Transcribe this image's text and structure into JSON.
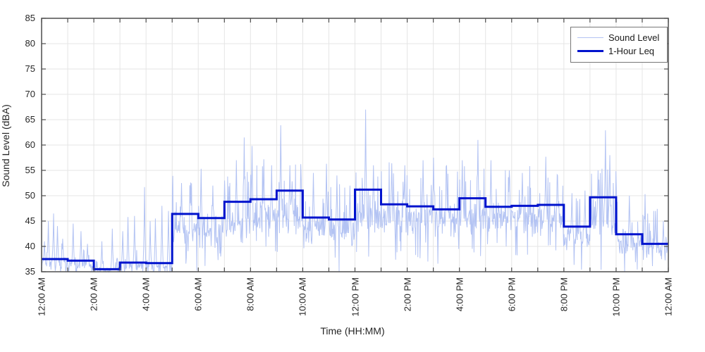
{
  "chart_data": {
    "type": "line",
    "title": "",
    "xlabel": "Time (HH:MM)",
    "ylabel": "Sound Level (dBA)",
    "ylim": [
      35,
      85
    ],
    "ytick_values": [
      35,
      40,
      45,
      50,
      55,
      60,
      65,
      70,
      75,
      80,
      85
    ],
    "xlim_hours": [
      0,
      24
    ],
    "xtick_hour_interval": 1,
    "xtick_label_interval": 2,
    "xtick_labels": [
      "12:00 AM",
      "2:00 AM",
      "4:00 AM",
      "6:00 AM",
      "8:00 AM",
      "10:00 AM",
      "12:00 PM",
      "2:00 PM",
      "4:00 PM",
      "6:00 PM",
      "8:00 PM",
      "10:00 PM",
      "12:00 AM"
    ],
    "grid": true,
    "colors": {
      "sound_level": "#b3c3f3",
      "leq": "#0013cd",
      "grid": "#e5e5e5",
      "axis": "#4d4d4d",
      "text": "#262626"
    },
    "legend": {
      "position": "top-right",
      "entries": [
        {
          "label": "Sound Level",
          "series": "sound_level",
          "line_weight": "thin"
        },
        {
          "label": "1-Hour Leq",
          "series": "leq",
          "line_weight": "thick"
        }
      ]
    },
    "series": [
      {
        "name": "Sound Level",
        "kind": "minute-samples-synthesized",
        "samples_per_hour": 60,
        "seed": 1337,
        "hour_envelope": {
          "base": [
            36.8,
            36.5,
            35.3,
            36.0,
            36.0,
            43.5,
            43.0,
            45.0,
            45.5,
            46.0,
            43.5,
            43.0,
            46.0,
            45.8,
            45.5,
            45.0,
            46.0,
            45.5,
            45.8,
            45.8,
            42.0,
            45.0,
            41.0,
            39.3
          ],
          "spread": [
            1.8,
            1.5,
            0.8,
            1.2,
            1.5,
            3.6,
            3.6,
            4.0,
            4.0,
            4.2,
            3.4,
            3.4,
            3.6,
            3.6,
            3.6,
            3.8,
            3.8,
            3.6,
            3.4,
            3.6,
            2.8,
            4.0,
            3.2,
            3.0
          ]
        },
        "notable_spikes_hour_dba": [
          [
            0.1,
            41.0
          ],
          [
            0.25,
            45.0
          ],
          [
            0.45,
            46.5
          ],
          [
            0.6,
            44.0
          ],
          [
            0.8,
            41.5
          ],
          [
            1.2,
            44.5
          ],
          [
            1.5,
            43.0
          ],
          [
            1.75,
            40.5
          ],
          [
            2.3,
            41.0
          ],
          [
            2.7,
            43.5
          ],
          [
            3.1,
            43.0
          ],
          [
            3.3,
            45.8
          ],
          [
            3.55,
            46.0
          ],
          [
            3.93,
            51.7
          ],
          [
            4.15,
            45.0
          ],
          [
            4.35,
            45.5
          ],
          [
            4.6,
            48.0
          ],
          [
            4.85,
            47.0
          ],
          [
            5.35,
            52.5
          ],
          [
            5.7,
            52.6
          ],
          [
            6.1,
            55.3
          ],
          [
            6.55,
            52.0
          ],
          [
            7.0,
            53.0
          ],
          [
            7.45,
            57.0
          ],
          [
            7.75,
            61.5
          ],
          [
            8.05,
            59.8
          ],
          [
            8.5,
            57.2
          ],
          [
            8.8,
            56.0
          ],
          [
            9.15,
            63.9
          ],
          [
            9.5,
            56.0
          ],
          [
            10.4,
            54.5
          ],
          [
            10.9,
            56.3
          ],
          [
            11.3,
            54.0
          ],
          [
            11.8,
            52.0
          ],
          [
            12.4,
            67.0
          ],
          [
            12.7,
            56.0
          ],
          [
            13.4,
            56.4
          ],
          [
            13.9,
            56.0
          ],
          [
            14.6,
            57.0
          ],
          [
            15.0,
            57.5
          ],
          [
            15.5,
            56.0
          ],
          [
            16.1,
            57.0
          ],
          [
            16.7,
            61.0
          ],
          [
            17.2,
            57.0
          ],
          [
            17.9,
            55.0
          ],
          [
            18.4,
            54.5
          ],
          [
            19.3,
            57.7
          ],
          [
            19.75,
            54.0
          ],
          [
            20.3,
            50.5
          ],
          [
            20.8,
            51.0
          ],
          [
            21.3,
            55.0
          ],
          [
            21.58,
            62.9
          ],
          [
            21.75,
            58.0
          ],
          [
            22.0,
            51.8
          ],
          [
            22.5,
            50.0
          ],
          [
            23.1,
            50.3
          ],
          [
            23.5,
            47.0
          ],
          [
            23.8,
            45.0
          ]
        ]
      },
      {
        "name": "1-Hour Leq",
        "kind": "hourly-step",
        "values": [
          37.5,
          37.2,
          35.5,
          36.8,
          36.7,
          46.4,
          45.6,
          48.8,
          49.3,
          51.0,
          45.7,
          45.3,
          51.2,
          48.3,
          47.9,
          47.3,
          49.5,
          47.8,
          48.0,
          48.2,
          43.9,
          49.7,
          42.4,
          40.5
        ]
      }
    ]
  }
}
